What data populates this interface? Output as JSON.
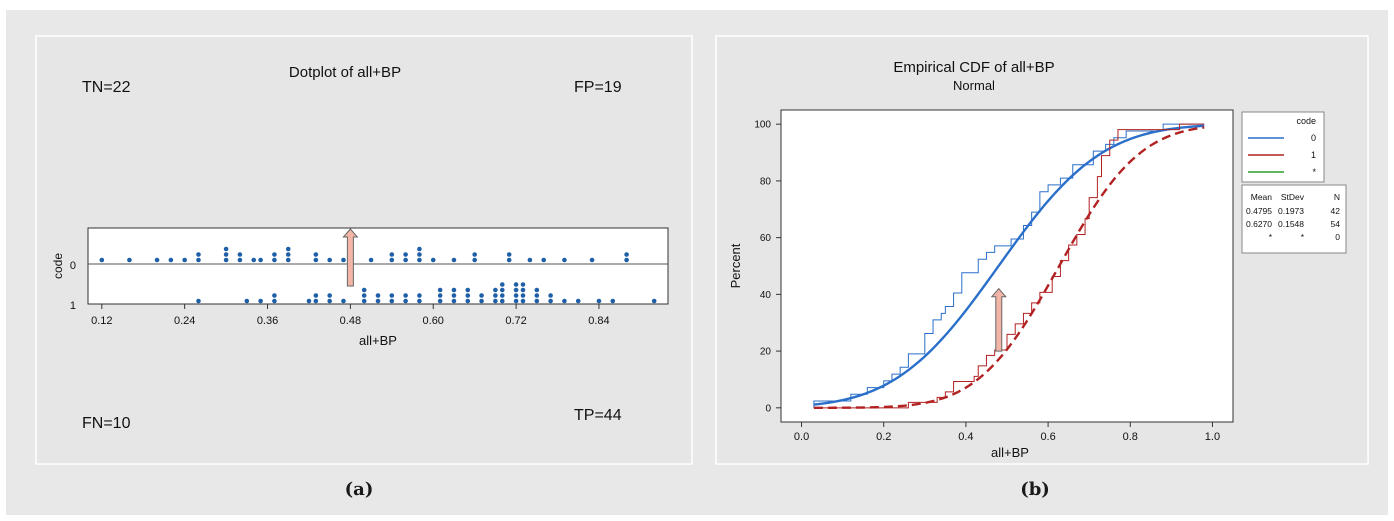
{
  "panel_captions": {
    "a": "(a)",
    "b": "(b)"
  },
  "colors": {
    "figure_bg": "#e8e8e8",
    "panel_bg": "#e6e6e6",
    "dot": "#1f5fa8",
    "code0_line": "#2a6fc9",
    "code1_line": "#b22222",
    "code_missing_line": "#2a9d2a",
    "arrow_fill": "#f2b5a6",
    "arrow_stroke": "#666666"
  },
  "chart_data": [
    {
      "type": "scatter",
      "subtype": "dotplot",
      "title": "Dotplot of all+BP",
      "xlabel": "all+BP",
      "ylabel": "code",
      "xlim": [
        0.1,
        0.94
      ],
      "xticks": [
        0.12,
        0.24,
        0.36,
        0.48,
        0.6,
        0.72,
        0.84
      ],
      "xtick_labels": [
        "0.12",
        "0.24",
        "0.36",
        "0.48",
        "0.60",
        "0.72",
        "0.84"
      ],
      "ytick_labels": [
        "0",
        "1"
      ],
      "annotations": {
        "tn": "TN=22",
        "fp": "FP=19",
        "fn": "FN=10",
        "tp": "TP=44"
      },
      "threshold_arrow_x": 0.48,
      "series": [
        {
          "name": "0",
          "bins": [
            [
              0.12,
              1
            ],
            [
              0.16,
              1
            ],
            [
              0.2,
              1
            ],
            [
              0.22,
              1
            ],
            [
              0.24,
              1
            ],
            [
              0.26,
              2
            ],
            [
              0.3,
              3
            ],
            [
              0.32,
              2
            ],
            [
              0.34,
              1
            ],
            [
              0.35,
              1
            ],
            [
              0.37,
              2
            ],
            [
              0.39,
              3
            ],
            [
              0.43,
              2
            ],
            [
              0.45,
              1
            ],
            [
              0.47,
              1
            ],
            [
              0.51,
              1
            ],
            [
              0.54,
              2
            ],
            [
              0.56,
              2
            ],
            [
              0.58,
              3
            ],
            [
              0.6,
              1
            ],
            [
              0.63,
              1
            ],
            [
              0.66,
              2
            ],
            [
              0.71,
              2
            ],
            [
              0.74,
              1
            ],
            [
              0.76,
              1
            ],
            [
              0.79,
              1
            ],
            [
              0.83,
              1
            ],
            [
              0.88,
              2
            ]
          ]
        },
        {
          "name": "1",
          "bins": [
            [
              0.26,
              1
            ],
            [
              0.33,
              1
            ],
            [
              0.35,
              1
            ],
            [
              0.37,
              2
            ],
            [
              0.42,
              1
            ],
            [
              0.43,
              2
            ],
            [
              0.45,
              2
            ],
            [
              0.47,
              1
            ],
            [
              0.5,
              3
            ],
            [
              0.52,
              2
            ],
            [
              0.54,
              2
            ],
            [
              0.56,
              2
            ],
            [
              0.58,
              2
            ],
            [
              0.61,
              3
            ],
            [
              0.63,
              3
            ],
            [
              0.65,
              3
            ],
            [
              0.67,
              2
            ],
            [
              0.69,
              3
            ],
            [
              0.7,
              4
            ],
            [
              0.72,
              4
            ],
            [
              0.73,
              4
            ],
            [
              0.75,
              3
            ],
            [
              0.77,
              2
            ],
            [
              0.79,
              1
            ],
            [
              0.81,
              1
            ],
            [
              0.84,
              1
            ],
            [
              0.86,
              1
            ],
            [
              0.92,
              1
            ]
          ]
        }
      ]
    },
    {
      "type": "line",
      "subtype": "empirical_cdf",
      "title": "Empirical CDF of all+BP",
      "subtitle": "Normal",
      "xlabel": "all+BP",
      "ylabel": "Percent",
      "xlim": [
        -0.05,
        1.05
      ],
      "ylim": [
        -5,
        105
      ],
      "xticks": [
        0.0,
        0.2,
        0.4,
        0.6,
        0.8,
        1.0
      ],
      "xtick_labels": [
        "0.0",
        "0.2",
        "0.4",
        "0.6",
        "0.8",
        "1.0"
      ],
      "yticks": [
        0,
        20,
        40,
        60,
        80,
        100
      ],
      "ytick_labels": [
        "0",
        "20",
        "40",
        "60",
        "80",
        "100"
      ],
      "threshold_arrow": {
        "x": 0.48,
        "y_from": 20,
        "y_to": 42
      },
      "legend": {
        "title": "code",
        "position": "right",
        "entries": [
          {
            "label": "0",
            "color": "#2a6fc9"
          },
          {
            "label": "1",
            "color": "#b22222"
          },
          {
            "label": "*",
            "color": "#2a9d2a"
          }
        ]
      },
      "stats_table": {
        "headers": [
          "Mean",
          "StDev",
          "N"
        ],
        "rows": [
          [
            "0.4795",
            "0.1973",
            "42"
          ],
          [
            "0.6270",
            "0.1548",
            "54"
          ],
          [
            "*",
            "*",
            "0"
          ]
        ]
      },
      "series": [
        {
          "name": "0",
          "kind": "fitted_normal",
          "mean": 0.4795,
          "stdev": 0.1973,
          "empirical": [
            [
              0.03,
              2.4
            ],
            [
              0.12,
              4.8
            ],
            [
              0.16,
              7.1
            ],
            [
              0.2,
              9.5
            ],
            [
              0.22,
              11.9
            ],
            [
              0.24,
              14.3
            ],
            [
              0.26,
              19.0
            ],
            [
              0.3,
              26.2
            ],
            [
              0.32,
              31.0
            ],
            [
              0.34,
              33.3
            ],
            [
              0.35,
              35.7
            ],
            [
              0.37,
              40.5
            ],
            [
              0.39,
              47.6
            ],
            [
              0.43,
              52.4
            ],
            [
              0.45,
              54.8
            ],
            [
              0.47,
              57.1
            ],
            [
              0.51,
              59.5
            ],
            [
              0.54,
              64.3
            ],
            [
              0.56,
              69.0
            ],
            [
              0.58,
              76.2
            ],
            [
              0.6,
              78.6
            ],
            [
              0.63,
              81.0
            ],
            [
              0.66,
              85.7
            ],
            [
              0.71,
              90.5
            ],
            [
              0.74,
              92.9
            ],
            [
              0.76,
              95.2
            ],
            [
              0.79,
              97.6
            ],
            [
              0.88,
              100.0
            ]
          ]
        },
        {
          "name": "1",
          "kind": "fitted_normal",
          "mean": 0.627,
          "stdev": 0.1548,
          "empirical": [
            [
              0.26,
              1.9
            ],
            [
              0.33,
              3.7
            ],
            [
              0.35,
              5.6
            ],
            [
              0.37,
              9.3
            ],
            [
              0.42,
              11.1
            ],
            [
              0.43,
              14.8
            ],
            [
              0.45,
              18.5
            ],
            [
              0.47,
              20.4
            ],
            [
              0.5,
              25.9
            ],
            [
              0.52,
              29.6
            ],
            [
              0.54,
              33.3
            ],
            [
              0.56,
              37.0
            ],
            [
              0.58,
              40.7
            ],
            [
              0.61,
              46.3
            ],
            [
              0.63,
              51.9
            ],
            [
              0.65,
              57.4
            ],
            [
              0.67,
              61.1
            ],
            [
              0.69,
              66.7
            ],
            [
              0.7,
              74.1
            ],
            [
              0.72,
              81.5
            ],
            [
              0.73,
              88.9
            ],
            [
              0.75,
              94.4
            ],
            [
              0.77,
              98.1
            ],
            [
              0.92,
              100.0
            ]
          ]
        }
      ]
    }
  ]
}
